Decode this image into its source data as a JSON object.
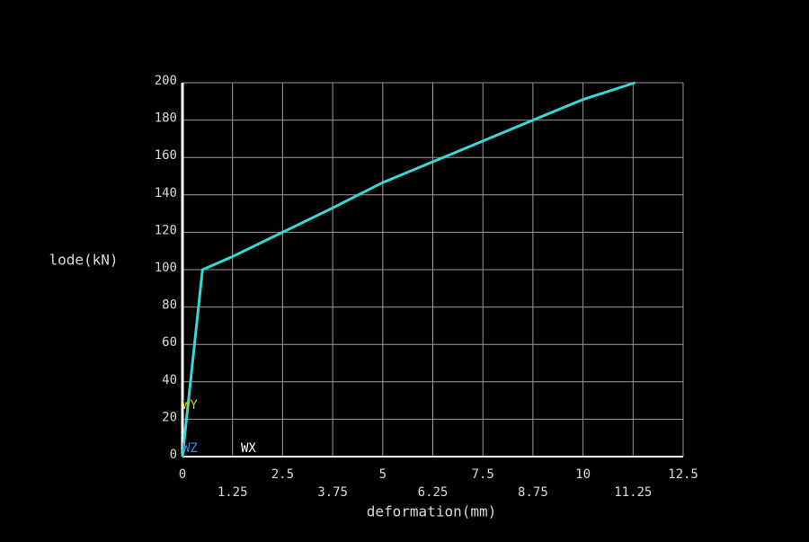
{
  "chart_data": {
    "type": "line",
    "x_label": "deformation(mm)",
    "y_label": "lode(kN)",
    "x": [
      0,
      0.5,
      1.25,
      2.5,
      3.75,
      5,
      6.25,
      7.5,
      8.75,
      10,
      11.3
    ],
    "series": [
      {
        "name": "lode",
        "color": "#3ad6d6",
        "values": [
          0,
          100,
          107,
          120,
          133,
          146.6,
          157.7,
          168.8,
          180,
          191,
          200
        ]
      }
    ],
    "xlim": [
      0,
      12.5
    ],
    "xticks": [
      0,
      1.25,
      2.5,
      3.75,
      5,
      6.25,
      7.5,
      8.75,
      10,
      11.25,
      12.5
    ],
    "ylim": [
      0,
      200
    ],
    "yticks": [
      0,
      20,
      40,
      60,
      80,
      100,
      120,
      140,
      160,
      180,
      200
    ],
    "grid": true,
    "annotations": [
      {
        "text": "WY",
        "color": "#c8c832"
      },
      {
        "text": "WZ",
        "color": "#3a8fd6"
      },
      {
        "text": "WX",
        "color": "#ffffff"
      }
    ]
  }
}
